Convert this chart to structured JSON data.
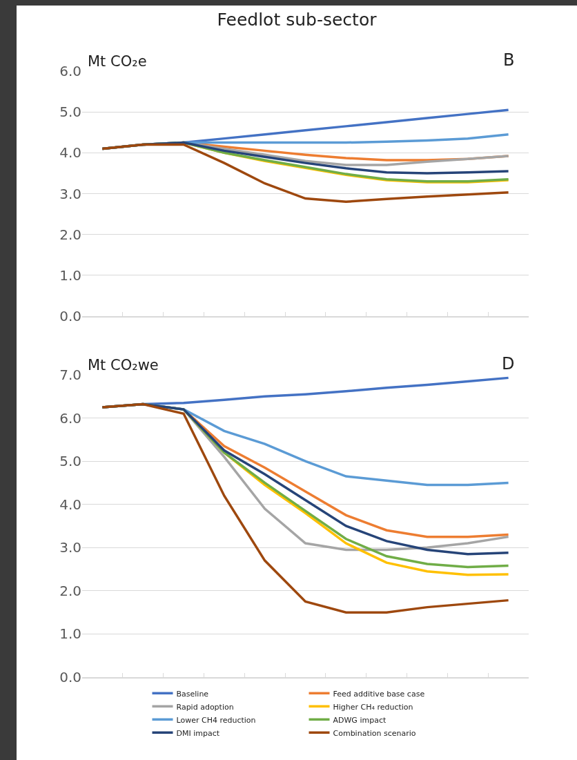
{
  "chart_data": [
    {
      "type": "line",
      "title": "Feedlot sub-sector",
      "ylabel": "Mt CO₂e",
      "annotations": [
        "B"
      ],
      "categories": [
        null,
        null,
        null,
        null,
        null,
        null,
        null,
        null,
        null,
        null,
        null
      ],
      "ylim": [
        0,
        6
      ],
      "yticks": [
        {
          "value": 0,
          "label": "0.0"
        },
        {
          "value": 1,
          "label": "1.0"
        },
        {
          "value": 2,
          "label": "2.0"
        },
        {
          "value": 3,
          "label": "3.0"
        },
        {
          "value": 4,
          "label": "4.0"
        },
        {
          "value": 5,
          "label": "5.0"
        },
        {
          "value": 6,
          "label": "6.0"
        }
      ],
      "grid": "y",
      "legend": false,
      "tick_labels": "y",
      "line_style": "solid",
      "marker": "none",
      "series": [
        {
          "color": "#4472c4",
          "values": [
            4.1,
            4.2,
            4.25,
            4.35,
            4.45,
            4.55,
            4.65,
            4.75,
            4.85,
            4.95,
            5.05
          ]
        },
        {
          "color": "#ed7d31",
          "values": [
            4.1,
            4.2,
            4.25,
            4.15,
            4.05,
            3.95,
            3.87,
            3.82,
            3.82,
            3.85,
            3.92
          ]
        },
        {
          "color": "#a5a5a5",
          "values": [
            4.1,
            4.2,
            4.25,
            4.1,
            3.95,
            3.8,
            3.7,
            3.7,
            3.78,
            3.85,
            3.92
          ]
        },
        {
          "color": "#ffc000",
          "values": [
            null,
            null,
            4.25,
            4.0,
            3.8,
            3.63,
            3.46,
            3.33,
            3.28,
            3.28,
            3.33
          ]
        },
        {
          "color": "#5b9bd5",
          "values": [
            4.1,
            4.2,
            4.25,
            4.25,
            4.25,
            4.25,
            4.25,
            4.27,
            4.3,
            4.35,
            4.45
          ]
        },
        {
          "color": "#70ad47",
          "values": [
            4.1,
            4.2,
            4.25,
            4.0,
            3.82,
            3.65,
            3.48,
            3.35,
            3.3,
            3.3,
            3.35
          ]
        },
        {
          "color": "#264478",
          "values": [
            4.1,
            4.2,
            4.25,
            4.05,
            3.9,
            3.75,
            3.62,
            3.52,
            3.5,
            3.52,
            3.55
          ]
        },
        {
          "color": "#9e480e",
          "values": [
            4.1,
            4.2,
            4.2,
            3.75,
            3.25,
            2.88,
            2.8,
            2.87,
            2.93,
            2.98,
            3.03
          ]
        }
      ]
    },
    {
      "type": "line",
      "ylabel": "Mt CO₂we",
      "annotations": [
        "D"
      ],
      "categories": [
        null,
        null,
        null,
        null,
        null,
        null,
        null,
        null,
        null,
        null,
        null
      ],
      "ylim": [
        0,
        7
      ],
      "yticks": [
        {
          "value": 0,
          "label": "0.0"
        },
        {
          "value": 1,
          "label": "1.0"
        },
        {
          "value": 2,
          "label": "2.0"
        },
        {
          "value": 3,
          "label": "3.0"
        },
        {
          "value": 4,
          "label": "4.0"
        },
        {
          "value": 5,
          "label": "5.0"
        },
        {
          "value": 6,
          "label": "6.0"
        },
        {
          "value": 7,
          "label": "7.0"
        }
      ],
      "grid": "y",
      "legend": "bottom",
      "tick_labels": "y",
      "line_style": "solid",
      "marker": "none",
      "series": [
        {
          "name": "Baseline",
          "color": "#4472c4",
          "values": [
            6.25,
            6.32,
            6.35,
            6.42,
            6.5,
            6.55,
            6.62,
            6.7,
            6.77,
            6.85,
            6.93
          ]
        },
        {
          "name": "Feed additive base case",
          "color": "#ed7d31",
          "values": [
            6.25,
            6.32,
            6.2,
            5.35,
            4.85,
            4.3,
            3.75,
            3.4,
            3.25,
            3.25,
            3.3
          ]
        },
        {
          "name": "Rapid adoption",
          "color": "#a5a5a5",
          "values": [
            6.25,
            6.32,
            6.2,
            5.1,
            3.9,
            3.1,
            2.95,
            2.95,
            3.0,
            3.1,
            3.25
          ]
        },
        {
          "name": "Higher CH₄ reduction",
          "color": "#ffc000",
          "values": [
            null,
            null,
            6.2,
            5.2,
            4.45,
            3.8,
            3.1,
            2.65,
            2.45,
            2.37,
            2.38
          ]
        },
        {
          "name": "Lower CH4 reduction",
          "color": "#5b9bd5",
          "values": [
            6.25,
            6.32,
            6.2,
            5.7,
            5.4,
            5.0,
            4.65,
            4.55,
            4.45,
            4.45,
            4.5
          ]
        },
        {
          "name": "ADWG impact",
          "color": "#70ad47",
          "values": [
            6.25,
            6.32,
            6.2,
            5.2,
            4.5,
            3.85,
            3.2,
            2.8,
            2.62,
            2.55,
            2.58
          ]
        },
        {
          "name": "DMI impact",
          "color": "#264478",
          "values": [
            6.25,
            6.32,
            6.2,
            5.25,
            4.7,
            4.1,
            3.5,
            3.15,
            2.95,
            2.85,
            2.88
          ]
        },
        {
          "name": "Combination scenario",
          "color": "#9e480e",
          "values": [
            6.25,
            6.32,
            6.1,
            4.2,
            2.7,
            1.75,
            1.5,
            1.5,
            1.62,
            1.7,
            1.78
          ]
        }
      ]
    }
  ]
}
